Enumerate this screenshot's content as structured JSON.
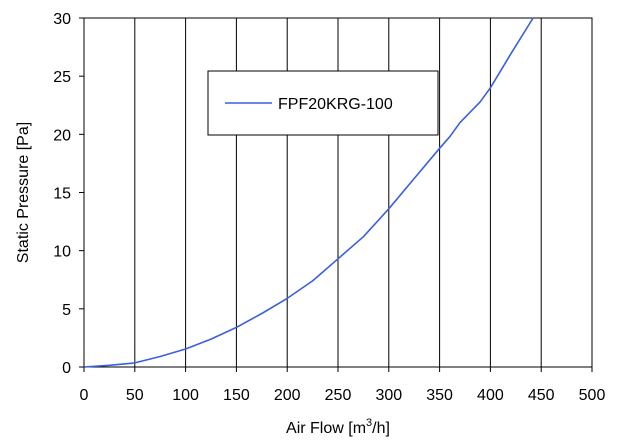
{
  "chart_data": {
    "type": "line",
    "title": "",
    "xlabel": "Air Flow  [m",
    "xlabel_sup": "3",
    "xlabel_tail": "/h]",
    "ylabel": "Static Pressure [Pa]",
    "xlim": [
      0,
      500
    ],
    "ylim": [
      0,
      30
    ],
    "x_ticks": [
      0,
      50,
      100,
      150,
      200,
      250,
      300,
      350,
      400,
      450,
      500
    ],
    "y_ticks": [
      0,
      5,
      10,
      15,
      20,
      25,
      30
    ],
    "x_tick_labels": [
      "0",
      "50",
      "100",
      "150",
      "200",
      "250",
      "300",
      "350",
      "400",
      "450",
      "500"
    ],
    "y_tick_labels": [
      "0",
      "5",
      "10",
      "15",
      "20",
      "25",
      "30"
    ],
    "grid": "vertical",
    "legend": "top-left",
    "series": [
      {
        "name": "FPF20KRG-100",
        "color": "#3a5fe0",
        "x": [
          0,
          25,
          50,
          75,
          100,
          125,
          150,
          175,
          200,
          225,
          250,
          275,
          300,
          325,
          350,
          360,
          370,
          390,
          400,
          420,
          442
        ],
        "y": [
          0,
          0.15,
          0.35,
          0.9,
          1.55,
          2.4,
          3.4,
          4.6,
          5.9,
          7.4,
          9.3,
          11.2,
          13.6,
          16.2,
          18.8,
          19.8,
          21.0,
          22.8,
          24.0,
          26.9,
          30.0
        ]
      }
    ]
  }
}
